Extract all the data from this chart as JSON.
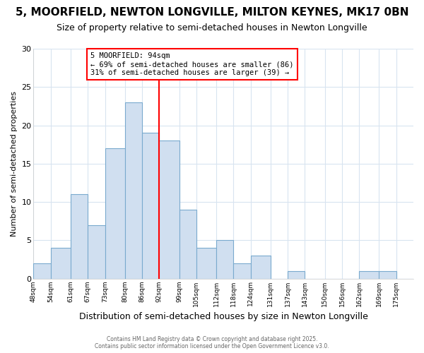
{
  "title": "5, MOORFIELD, NEWTON LONGVILLE, MILTON KEYNES, MK17 0BN",
  "subtitle": "Size of property relative to semi-detached houses in Newton Longville",
  "xlabel": "Distribution of semi-detached houses by size in Newton Longville",
  "ylabel": "Number of semi-detached properties",
  "bin_labels": [
    "48sqm",
    "54sqm",
    "61sqm",
    "67sqm",
    "73sqm",
    "80sqm",
    "86sqm",
    "92sqm",
    "99sqm",
    "105sqm",
    "112sqm",
    "118sqm",
    "124sqm",
    "131sqm",
    "137sqm",
    "143sqm",
    "150sqm",
    "156sqm",
    "162sqm",
    "169sqm",
    "175sqm"
  ],
  "bin_edges": [
    48,
    54,
    61,
    67,
    73,
    80,
    86,
    92,
    99,
    105,
    112,
    118,
    124,
    131,
    137,
    143,
    150,
    156,
    162,
    169,
    175,
    181
  ],
  "bar_heights": [
    2,
    4,
    11,
    7,
    17,
    23,
    19,
    18,
    9,
    4,
    5,
    2,
    3,
    0,
    1,
    0,
    0,
    0,
    1,
    1,
    0
  ],
  "bar_color": "#d0dff0",
  "bar_edge_color": "#7aaace",
  "vline_x": 92,
  "vline_color": "red",
  "annotation_title": "5 MOORFIELD: 94sqm",
  "annotation_line1": "← 69% of semi-detached houses are smaller (86)",
  "annotation_line2": "31% of semi-detached houses are larger (39) →",
  "footer1": "Contains HM Land Registry data © Crown copyright and database right 2025.",
  "footer2": "Contains public sector information licensed under the Open Government Licence v3.0.",
  "ylim": [
    0,
    30
  ],
  "background_color": "#ffffff",
  "plot_background": "#ffffff",
  "grid_color": "#d8e4f0",
  "title_fontsize": 11,
  "subtitle_fontsize": 9
}
